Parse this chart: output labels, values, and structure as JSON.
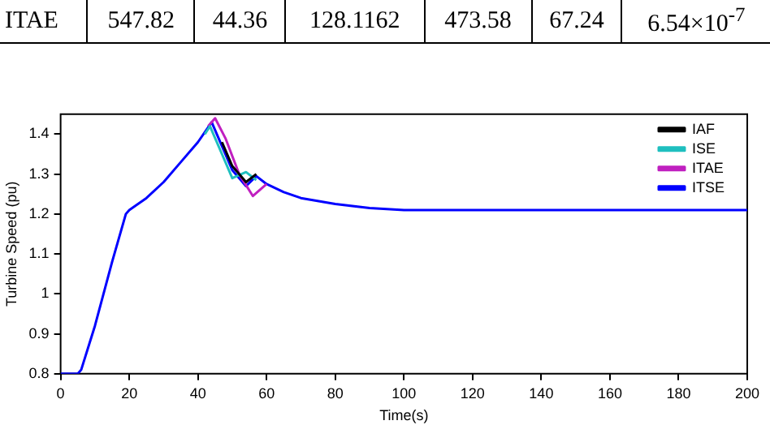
{
  "chart_data": [
    {
      "type": "other",
      "annotations": [
        "ITAE",
        "547.82",
        "44.36",
        "128.1162",
        "473.58",
        "67.24",
        "6.54×10$^{-7}$"
      ]
    },
    {
      "type": "line",
      "xlabel": "Time(s)",
      "ylabel": "Turbine Speed (pu)",
      "xlim": [
        0,
        200
      ],
      "ylim": [
        0.8,
        1.45
      ],
      "xticks": [
        0,
        20,
        40,
        60,
        80,
        100,
        120,
        140,
        160,
        180,
        200
      ],
      "yticks": [
        {
          "value": 0.8,
          "label": "0.8"
        },
        {
          "value": 0.9,
          "label": "0.9"
        },
        1,
        1.1,
        1.2,
        1.3,
        1.4
      ],
      "grid": false,
      "legend": "top right",
      "marker": "none",
      "line_style": "solid",
      "series": [
        {
          "name": "IAF",
          "color": "#000000",
          "x": [
            47,
            50,
            54,
            57
          ],
          "values": [
            1.38,
            1.32,
            1.28,
            1.3
          ]
        },
        {
          "name": "ISE",
          "color": "#1fbfbf",
          "x": [
            42,
            43.5,
            47,
            50,
            54,
            57
          ],
          "values": [
            1.4,
            1.42,
            1.35,
            1.29,
            1.305,
            1.285
          ]
        },
        {
          "name": "ITAE",
          "color": "#c020c0",
          "x": [
            43,
            45,
            48,
            52,
            56,
            60
          ],
          "values": [
            1.42,
            1.44,
            1.39,
            1.3,
            1.245,
            1.275
          ]
        },
        {
          "name": "ITSE",
          "color": "#0000ff",
          "x": [
            0,
            5,
            6,
            10,
            15,
            19,
            20,
            25,
            30,
            35,
            40,
            44,
            47,
            50,
            54,
            57,
            60,
            65,
            70,
            80,
            90,
            100,
            200
          ],
          "values": [
            0.8,
            0.8,
            0.81,
            0.92,
            1.08,
            1.2,
            1.21,
            1.24,
            1.28,
            1.33,
            1.38,
            1.43,
            1.37,
            1.31,
            1.27,
            1.295,
            1.275,
            1.255,
            1.24,
            1.225,
            1.215,
            1.21,
            1.21
          ]
        }
      ]
    }
  ]
}
